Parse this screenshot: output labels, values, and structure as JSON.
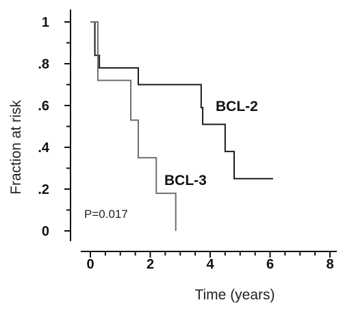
{
  "chart_data": {
    "type": "line",
    "subtype": "kaplan-meier-step",
    "xlabel": "Time (years)",
    "ylabel": "Fraction at risk",
    "xlim": [
      0,
      8
    ],
    "ylim": [
      0,
      1
    ],
    "x_ticks": [
      "0",
      "2",
      "4",
      "6",
      "8"
    ],
    "y_ticks": [
      "0",
      ".2",
      ".4",
      ".6",
      ".8",
      "1"
    ],
    "annotation": "P=0.017",
    "series": [
      {
        "name": "BCL-2",
        "color": "#1a1a1a",
        "x": [
          0,
          0.15,
          0.3,
          1.6,
          3.7,
          3.75,
          4.5,
          4.8,
          6.1
        ],
        "y": [
          1.0,
          0.84,
          0.78,
          0.7,
          0.59,
          0.51,
          0.38,
          0.25,
          0.25
        ]
      },
      {
        "name": "BCL-3",
        "color": "#6e6e6e",
        "x": [
          0,
          0.25,
          1.35,
          1.6,
          2.2,
          2.85
        ],
        "y": [
          1.0,
          0.72,
          0.53,
          0.35,
          0.18,
          0.0
        ]
      }
    ]
  }
}
